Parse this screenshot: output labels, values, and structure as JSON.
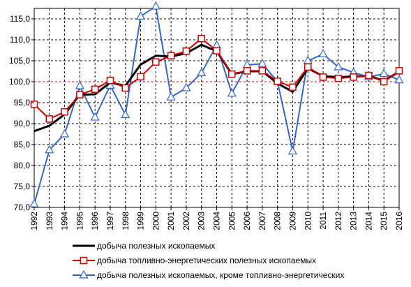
{
  "chart_data": {
    "type": "line",
    "title": "",
    "xlabel": "",
    "ylabel": "",
    "ylim": [
      70,
      117.5
    ],
    "y_ticks": [
      "70,0",
      "75,0",
      "80,0",
      "85,0",
      "90,0",
      "95,0",
      "100,0",
      "105,0",
      "110,0",
      "115,0"
    ],
    "y_tick_values": [
      70,
      75,
      80,
      85,
      90,
      95,
      100,
      105,
      110,
      115
    ],
    "grid": true,
    "reference_line": 100,
    "legend_position": "bottom",
    "categories": [
      "1992",
      "1993",
      "1994",
      "1995",
      "1996",
      "1997",
      "1998",
      "1999",
      "2000",
      "2001",
      "2002",
      "2003",
      "2004",
      "2005",
      "2006",
      "2007",
      "2008",
      "2009",
      "2010",
      "2011",
      "2012",
      "2013",
      "2014",
      "2015",
      "2016"
    ],
    "series": [
      {
        "name": "добыча полезных ископаемых",
        "color": "#000000",
        "marker": "none",
        "values": [
          88.2,
          89.5,
          92.2,
          96.9,
          97.0,
          99.8,
          99.0,
          104.1,
          106.2,
          106.0,
          106.8,
          108.8,
          107.3,
          101.8,
          102.5,
          102.5,
          99.6,
          97.6,
          103.2,
          101.3,
          101.1,
          101.2,
          101.4,
          100.2,
          102.4
        ]
      },
      {
        "name": "добыча топливно-энергетических полезных ископаемых",
        "color": "#cc0000",
        "marker": "square",
        "values": [
          94.6,
          91.1,
          92.8,
          96.9,
          98.2,
          100.3,
          98.5,
          101.2,
          104.7,
          106.2,
          107.3,
          110.3,
          107.4,
          101.8,
          102.6,
          102.6,
          100.1,
          98.7,
          103.5,
          101.1,
          100.8,
          101.1,
          101.5,
          100.0,
          102.6
        ]
      },
      {
        "name": "добыча полезных ископаемых, кроме топливно-энергетических",
        "color": "#3366cc",
        "marker": "triangle",
        "values": [
          70.8,
          83.7,
          87.5,
          99.0,
          91.5,
          99.1,
          92.1,
          115.6,
          118.0,
          96.3,
          98.5,
          102.1,
          108.7,
          97.2,
          104.0,
          104.3,
          100.0,
          83.4,
          105.0,
          106.6,
          103.5,
          102.2,
          101.1,
          101.9,
          100.4
        ]
      }
    ]
  }
}
